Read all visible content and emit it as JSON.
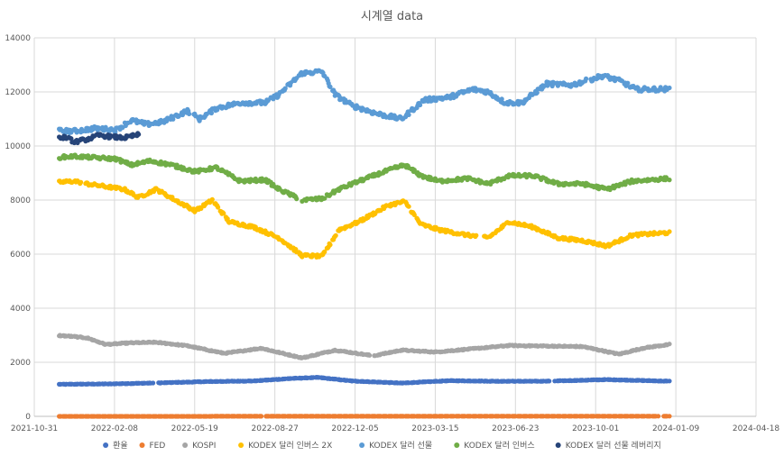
{
  "chart_data": {
    "type": "scatter",
    "title": "시계열 data",
    "xlabel": "",
    "ylabel": "",
    "xlim": [
      "2021-10-31",
      "2024-04-18"
    ],
    "ylim": [
      0,
      14000
    ],
    "grid": true,
    "legend_position": "bottom",
    "x_ticks": [
      "2021-10-31",
      "2022-02-08",
      "2022-05-19",
      "2022-08-27",
      "2022-12-05",
      "2023-03-15",
      "2023-06-23",
      "2023-10-01",
      "2024-01-09",
      "2024-04-18"
    ],
    "y_ticks": [
      "0",
      "2000",
      "4000",
      "6000",
      "8000",
      "10000",
      "12000",
      "14000"
    ],
    "series": [
      {
        "name": "환율",
        "color": "#4472C4",
        "x_start": "2021-12-01",
        "x_end": "2024-01-01",
        "points": [
          [
            "2021-12-01",
            1185
          ],
          [
            "2022-02-01",
            1200
          ],
          [
            "2022-04-01",
            1235
          ],
          [
            "2022-06-01",
            1285
          ],
          [
            "2022-08-01",
            1310
          ],
          [
            "2022-09-15",
            1400
          ],
          [
            "2022-10-20",
            1440
          ],
          [
            "2022-12-01",
            1310
          ],
          [
            "2023-02-01",
            1230
          ],
          [
            "2023-04-01",
            1320
          ],
          [
            "2023-06-01",
            1300
          ],
          [
            "2023-08-01",
            1300
          ],
          [
            "2023-10-15",
            1360
          ],
          [
            "2024-01-01",
            1300
          ]
        ]
      },
      {
        "name": "FED",
        "color": "#ED7D31",
        "x_start": "2021-12-01",
        "x_end": "2024-01-01",
        "points": [
          [
            "2021-12-01",
            0.25
          ],
          [
            "2022-03-20",
            0.5
          ],
          [
            "2022-06-15",
            1.75
          ],
          [
            "2022-09-22",
            3.25
          ],
          [
            "2022-12-15",
            4.5
          ],
          [
            "2023-03-23",
            5.0
          ],
          [
            "2023-07-27",
            5.5
          ],
          [
            "2024-01-01",
            5.5
          ]
        ]
      },
      {
        "name": "KOSPI",
        "color": "#A5A5A5",
        "x_start": "2021-12-01",
        "x_end": "2024-01-01",
        "points": [
          [
            "2021-12-01",
            2990
          ],
          [
            "2021-12-20",
            2950
          ],
          [
            "2022-01-05",
            2900
          ],
          [
            "2022-01-28",
            2660
          ],
          [
            "2022-03-01",
            2720
          ],
          [
            "2022-04-01",
            2740
          ],
          [
            "2022-05-10",
            2610
          ],
          [
            "2022-06-25",
            2330
          ],
          [
            "2022-08-10",
            2520
          ],
          [
            "2022-09-30",
            2160
          ],
          [
            "2022-11-10",
            2450
          ],
          [
            "2022-12-28",
            2240
          ],
          [
            "2023-02-01",
            2450
          ],
          [
            "2023-03-15",
            2380
          ],
          [
            "2023-05-01",
            2500
          ],
          [
            "2023-06-15",
            2620
          ],
          [
            "2023-08-01",
            2600
          ],
          [
            "2023-09-15",
            2580
          ],
          [
            "2023-10-30",
            2300
          ],
          [
            "2023-11-30",
            2530
          ],
          [
            "2024-01-01",
            2660
          ]
        ]
      },
      {
        "name": "KODEX 달러 인버스 2X",
        "color": "#FFC000",
        "x_start": "2021-12-01",
        "x_end": "2024-01-01",
        "points": [
          [
            "2021-12-01",
            8660
          ],
          [
            "2021-12-20",
            8700
          ],
          [
            "2022-01-05",
            8600
          ],
          [
            "2022-01-28",
            8500
          ],
          [
            "2022-02-20",
            8400
          ],
          [
            "2022-03-10",
            8100
          ],
          [
            "2022-04-01",
            8400
          ],
          [
            "2022-04-25",
            8000
          ],
          [
            "2022-05-20",
            7600
          ],
          [
            "2022-06-10",
            8000
          ],
          [
            "2022-07-01",
            7200
          ],
          [
            "2022-08-01",
            7000
          ],
          [
            "2022-09-01",
            6600
          ],
          [
            "2022-09-30",
            5950
          ],
          [
            "2022-10-25",
            5920
          ],
          [
            "2022-11-15",
            6900
          ],
          [
            "2022-12-10",
            7200
          ],
          [
            "2023-01-15",
            7800
          ],
          [
            "2023-02-05",
            7950
          ],
          [
            "2023-02-25",
            7100
          ],
          [
            "2023-03-20",
            6900
          ],
          [
            "2023-04-25",
            6700
          ],
          [
            "2023-05-20",
            6600
          ],
          [
            "2023-06-15",
            7200
          ],
          [
            "2023-07-15",
            7000
          ],
          [
            "2023-08-15",
            6600
          ],
          [
            "2023-09-15",
            6500
          ],
          [
            "2023-10-15",
            6300
          ],
          [
            "2023-11-15",
            6700
          ],
          [
            "2024-01-01",
            6800
          ]
        ]
      },
      {
        "name": "KODEX 달러 선물",
        "color": "#5B9BD5",
        "x_start": "2021-12-01",
        "x_end": "2024-01-01",
        "points": [
          [
            "2021-12-01",
            10560
          ],
          [
            "2021-12-20",
            10550
          ],
          [
            "2022-01-15",
            10650
          ],
          [
            "2022-02-10",
            10600
          ],
          [
            "2022-03-01",
            10950
          ],
          [
            "2022-03-20",
            10800
          ],
          [
            "2022-04-10",
            10900
          ],
          [
            "2022-05-10",
            11300
          ],
          [
            "2022-05-25",
            11000
          ],
          [
            "2022-06-15",
            11400
          ],
          [
            "2022-07-15",
            11600
          ],
          [
            "2022-08-15",
            11600
          ],
          [
            "2022-09-01",
            11900
          ],
          [
            "2022-09-30",
            12700
          ],
          [
            "2022-10-25",
            12750
          ],
          [
            "2022-11-10",
            11900
          ],
          [
            "2022-12-01",
            11500
          ],
          [
            "2023-01-01",
            11200
          ],
          [
            "2023-02-01",
            11000
          ],
          [
            "2023-03-01",
            11700
          ],
          [
            "2023-04-01",
            11800
          ],
          [
            "2023-05-01",
            12100
          ],
          [
            "2023-05-20",
            12000
          ],
          [
            "2023-06-10",
            11600
          ],
          [
            "2023-07-01",
            11600
          ],
          [
            "2023-08-01",
            12300
          ],
          [
            "2023-09-01",
            12250
          ],
          [
            "2023-10-10",
            12600
          ],
          [
            "2023-11-01",
            12400
          ],
          [
            "2023-11-20",
            12100
          ],
          [
            "2024-01-01",
            12100
          ]
        ]
      },
      {
        "name": "KODEX 달러 인버스",
        "color": "#70AD47",
        "x_start": "2021-12-01",
        "x_end": "2024-01-01",
        "points": [
          [
            "2021-12-01",
            9580
          ],
          [
            "2021-12-20",
            9620
          ],
          [
            "2022-01-15",
            9570
          ],
          [
            "2022-02-10",
            9520
          ],
          [
            "2022-03-01",
            9300
          ],
          [
            "2022-03-25",
            9450
          ],
          [
            "2022-04-20",
            9300
          ],
          [
            "2022-05-20",
            9050
          ],
          [
            "2022-06-15",
            9200
          ],
          [
            "2022-07-15",
            8700
          ],
          [
            "2022-08-15",
            8750
          ],
          [
            "2022-09-01",
            8400
          ],
          [
            "2022-09-30",
            8000
          ],
          [
            "2022-10-25",
            8050
          ],
          [
            "2022-11-15",
            8400
          ],
          [
            "2022-12-10",
            8700
          ],
          [
            "2023-01-15",
            9100
          ],
          [
            "2023-02-05",
            9300
          ],
          [
            "2023-02-25",
            8900
          ],
          [
            "2023-03-20",
            8700
          ],
          [
            "2023-04-25",
            8800
          ],
          [
            "2023-05-20",
            8600
          ],
          [
            "2023-06-15",
            8900
          ],
          [
            "2023-07-15",
            8900
          ],
          [
            "2023-08-15",
            8600
          ],
          [
            "2023-09-15",
            8600
          ],
          [
            "2023-10-15",
            8400
          ],
          [
            "2023-11-15",
            8700
          ],
          [
            "2024-01-01",
            8800
          ]
        ]
      },
      {
        "name": "KODEX 달러 선물 레버리지",
        "color": "#264478",
        "x_start": "2021-12-01",
        "x_end": "2022-03-10",
        "points": [
          [
            "2021-12-01",
            10300
          ],
          [
            "2021-12-10",
            10320
          ],
          [
            "2021-12-20",
            10150
          ],
          [
            "2022-01-05",
            10250
          ],
          [
            "2022-01-20",
            10400
          ],
          [
            "2022-02-01",
            10350
          ],
          [
            "2022-02-20",
            10300
          ],
          [
            "2022-03-10",
            10420
          ]
        ]
      }
    ]
  }
}
